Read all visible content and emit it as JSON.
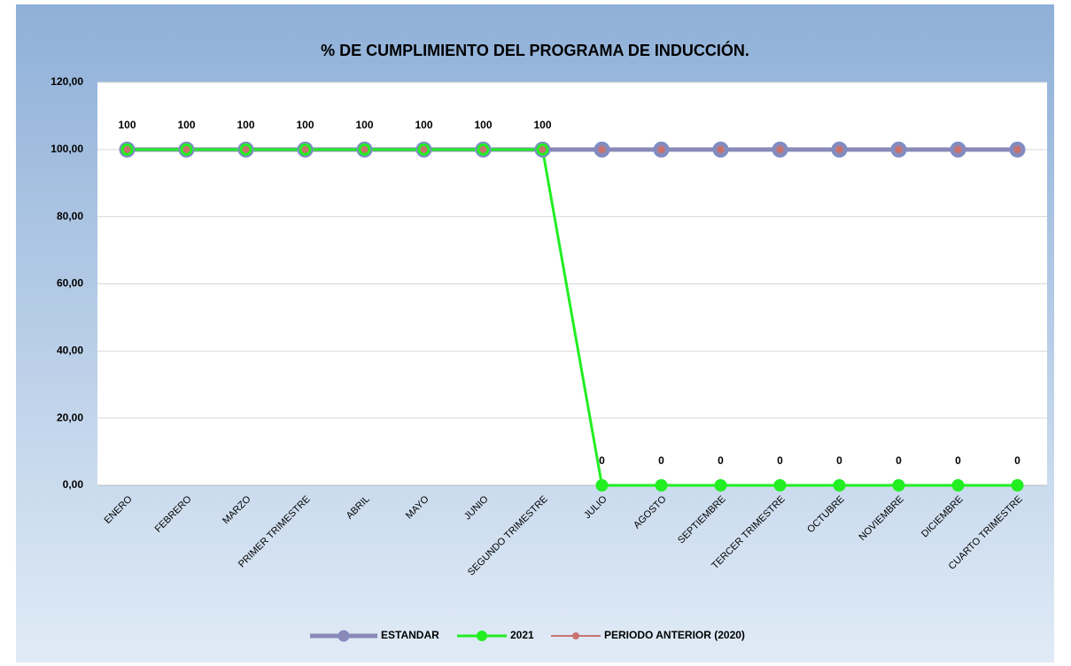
{
  "chart_data": {
    "type": "line",
    "title": "% DE CUMPLIMIENTO DEL PROGRAMA DE INDUCCIÓN.",
    "categories": [
      "ENERO",
      "FEBRERO",
      "MARZO",
      "PRIMER TRIMESTRE",
      "ABRIL",
      "MAYO",
      "JUNIO",
      "SEGUNDO TRIMESTRE",
      "JULIO",
      "AGOSTO",
      "SEPTIEMBRE",
      "TERCER TRIMESTRE",
      "OCTUBRE",
      "NOVIEMBRE",
      "DICIEMBRE",
      "CUARTO TRIMESTRE"
    ],
    "series": [
      {
        "name": "ESTANDAR",
        "color": "#8a8ab8",
        "values": [
          100,
          100,
          100,
          100,
          100,
          100,
          100,
          100,
          100,
          100,
          100,
          100,
          100,
          100,
          100,
          100
        ]
      },
      {
        "name": "2021",
        "color": "#22ee22",
        "values": [
          100,
          100,
          100,
          100,
          100,
          100,
          100,
          100,
          0,
          0,
          0,
          0,
          0,
          0,
          0,
          0
        ]
      },
      {
        "name": "PERIODO ANTERIOR (2020)",
        "color": "#c9726d",
        "values": [
          100,
          100,
          100,
          100,
          100,
          100,
          100,
          100,
          100,
          100,
          100,
          100,
          100,
          100,
          100,
          100
        ]
      }
    ],
    "ylim": [
      0,
      120
    ],
    "yticks": [
      {
        "value": 0,
        "label": "0,00"
      },
      {
        "value": 20,
        "label": "20,00"
      },
      {
        "value": 40,
        "label": "40,00"
      },
      {
        "value": 60,
        "label": "60,00"
      },
      {
        "value": 80,
        "label": "80,00"
      },
      {
        "value": 100,
        "label": "100,00"
      },
      {
        "value": 120,
        "label": "120,00"
      }
    ],
    "grid": true,
    "legend": "bottom"
  }
}
